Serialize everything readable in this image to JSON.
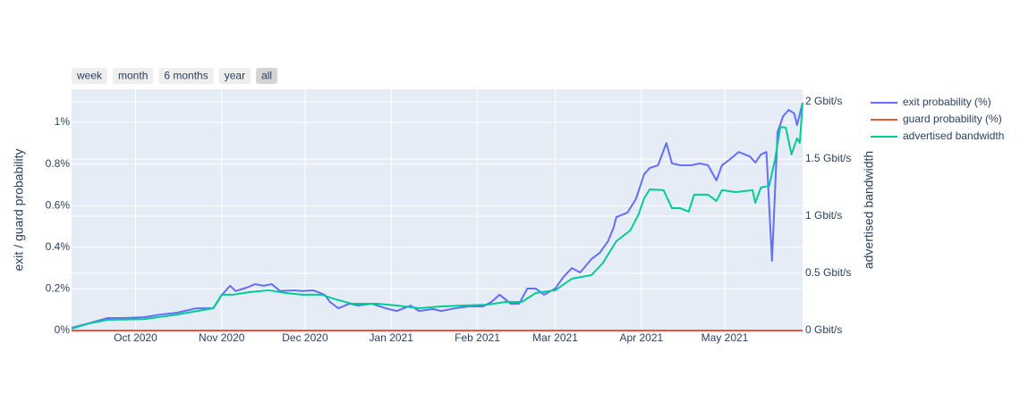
{
  "chart_data": {
    "type": "line",
    "range_buttons": [
      "week",
      "month",
      "6 months",
      "year",
      "all"
    ],
    "active_button": 4,
    "y_label": "exit / guard probability",
    "y2_label": "advertised bandwidth",
    "xlim": [
      "2020-09-08",
      "2021-05-29"
    ],
    "xticks": [
      {
        "value": "2020-10",
        "label": "Oct 2020"
      },
      {
        "value": "2020-11",
        "label": "Nov 2020"
      },
      {
        "value": "2020-12",
        "label": "Dec 2020"
      },
      {
        "value": "2021-01",
        "label": "Jan 2021"
      },
      {
        "value": "2021-02",
        "label": "Feb 2021"
      },
      {
        "value": "2021-03",
        "label": "Mar 2021"
      },
      {
        "value": "2021-04",
        "label": "Apr 2021"
      },
      {
        "value": "2021-05",
        "label": "May 2021"
      }
    ],
    "ylim": [
      0,
      1.159
    ],
    "yticks": [
      {
        "value": 0,
        "label": "0%"
      },
      {
        "value": 0.2,
        "label": "0.2%"
      },
      {
        "value": 0.4,
        "label": "0.4%"
      },
      {
        "value": 0.6,
        "label": "0.6%"
      },
      {
        "value": 0.8,
        "label": "0.8%"
      },
      {
        "value": 1,
        "label": "1%"
      }
    ],
    "y2lim": [
      0,
      2.109
    ],
    "y2ticks": [
      {
        "value": 0,
        "label": "0 Gbit/s"
      },
      {
        "value": 0.5,
        "label": "0.5 Gbit/s"
      },
      {
        "value": 1,
        "label": "1 Gbit/s"
      },
      {
        "value": 1.5,
        "label": "1.5 Gbit/s"
      },
      {
        "value": 2,
        "label": "2 Gbit/s"
      }
    ],
    "grid": true,
    "legend": "right",
    "series": [
      {
        "name": "exit probability (%)",
        "color": "#636efa",
        "axis": "y",
        "x": [
          "2020-09-08",
          "2020-09-14",
          "2020-09-21",
          "2020-09-27",
          "2020-10-04",
          "2020-10-10",
          "2020-10-16",
          "2020-10-23",
          "2020-10-29",
          "2020-11-01",
          "2020-11-04",
          "2020-11-06",
          "2020-11-10",
          "2020-11-13",
          "2020-11-16",
          "2020-11-19",
          "2020-11-22",
          "2020-11-27",
          "2020-11-30",
          "2020-12-04",
          "2020-12-08",
          "2020-12-10",
          "2020-12-13",
          "2020-12-17",
          "2020-12-20",
          "2020-12-25",
          "2020-12-30",
          "2021-01-03",
          "2021-01-08",
          "2021-01-11",
          "2021-01-16",
          "2021-01-19",
          "2021-01-24",
          "2021-01-29",
          "2021-02-03",
          "2021-02-06",
          "2021-02-09",
          "2021-02-13",
          "2021-02-16",
          "2021-02-19",
          "2021-02-22",
          "2021-02-25",
          "2021-03-01",
          "2021-03-04",
          "2021-03-07",
          "2021-03-10",
          "2021-03-14",
          "2021-03-17",
          "2021-03-20",
          "2021-03-22",
          "2021-03-23",
          "2021-03-27",
          "2021-03-30",
          "2021-04-02",
          "2021-04-04",
          "2021-04-07",
          "2021-04-10",
          "2021-04-12",
          "2021-04-15",
          "2021-04-19",
          "2021-04-22",
          "2021-04-25",
          "2021-04-28",
          "2021-04-30",
          "2021-05-03",
          "2021-05-06",
          "2021-05-10",
          "2021-05-12",
          "2021-05-14",
          "2021-05-16",
          "2021-05-18",
          "2021-05-20",
          "2021-05-22",
          "2021-05-24",
          "2021-05-26",
          "2021-05-27",
          "2021-05-29"
        ],
        "values": [
          0.013,
          0.034,
          0.06,
          0.06,
          0.064,
          0.077,
          0.086,
          0.107,
          0.107,
          0.17,
          0.215,
          0.19,
          0.206,
          0.223,
          0.215,
          0.223,
          0.19,
          0.193,
          0.19,
          0.193,
          0.172,
          0.137,
          0.107,
          0.129,
          0.12,
          0.129,
          0.107,
          0.094,
          0.12,
          0.094,
          0.103,
          0.094,
          0.107,
          0.116,
          0.116,
          0.137,
          0.172,
          0.129,
          0.129,
          0.202,
          0.202,
          0.172,
          0.202,
          0.258,
          0.3,
          0.279,
          0.343,
          0.373,
          0.429,
          0.494,
          0.545,
          0.567,
          0.631,
          0.751,
          0.781,
          0.794,
          0.901,
          0.803,
          0.794,
          0.794,
          0.803,
          0.794,
          0.721,
          0.794,
          0.824,
          0.858,
          0.837,
          0.807,
          0.846,
          0.858,
          0.335,
          0.953,
          1.03,
          1.06,
          1.043,
          0.987,
          1.094
        ]
      },
      {
        "name": "guard probability (%)",
        "color": "#ef553b",
        "axis": "y",
        "x": [
          "2020-09-08",
          "2021-05-29"
        ],
        "values": [
          0,
          0
        ]
      },
      {
        "name": "advertised bandwidth",
        "color": "#00cc96",
        "axis": "y2",
        "x": [
          "2020-09-08",
          "2020-09-14",
          "2020-09-21",
          "2020-10-04",
          "2020-10-16",
          "2020-10-29",
          "2020-11-01",
          "2020-11-05",
          "2020-11-11",
          "2020-11-18",
          "2020-11-24",
          "2020-11-30",
          "2020-12-07",
          "2020-12-12",
          "2020-12-18",
          "2020-12-27",
          "2021-01-03",
          "2021-01-11",
          "2021-01-19",
          "2021-01-27",
          "2021-02-05",
          "2021-02-11",
          "2021-02-17",
          "2021-02-22",
          "2021-03-01",
          "2021-03-07",
          "2021-03-14",
          "2021-03-18",
          "2021-03-23",
          "2021-03-28",
          "2021-03-31",
          "2021-04-02",
          "2021-04-04",
          "2021-04-09",
          "2021-04-12",
          "2021-04-15",
          "2021-04-18",
          "2021-04-20",
          "2021-04-25",
          "2021-04-28",
          "2021-04-30",
          "2021-05-05",
          "2021-05-11",
          "2021-05-12",
          "2021-05-14",
          "2021-05-17",
          "2021-05-19",
          "2021-05-21",
          "2021-05-23",
          "2021-05-25",
          "2021-05-27",
          "2021-05-28",
          "2021-05-29"
        ],
        "values": [
          0.016,
          0.06,
          0.094,
          0.1,
          0.14,
          0.195,
          0.313,
          0.313,
          0.336,
          0.352,
          0.328,
          0.313,
          0.313,
          0.273,
          0.234,
          0.234,
          0.219,
          0.195,
          0.211,
          0.219,
          0.227,
          0.25,
          0.25,
          0.328,
          0.352,
          0.453,
          0.484,
          0.586,
          0.781,
          0.875,
          1.016,
          1.156,
          1.234,
          1.227,
          1.07,
          1.07,
          1.039,
          1.188,
          1.188,
          1.133,
          1.227,
          1.211,
          1.227,
          1.117,
          1.25,
          1.266,
          1.484,
          1.781,
          1.773,
          1.539,
          1.68,
          1.641,
          1.992
        ]
      }
    ]
  }
}
